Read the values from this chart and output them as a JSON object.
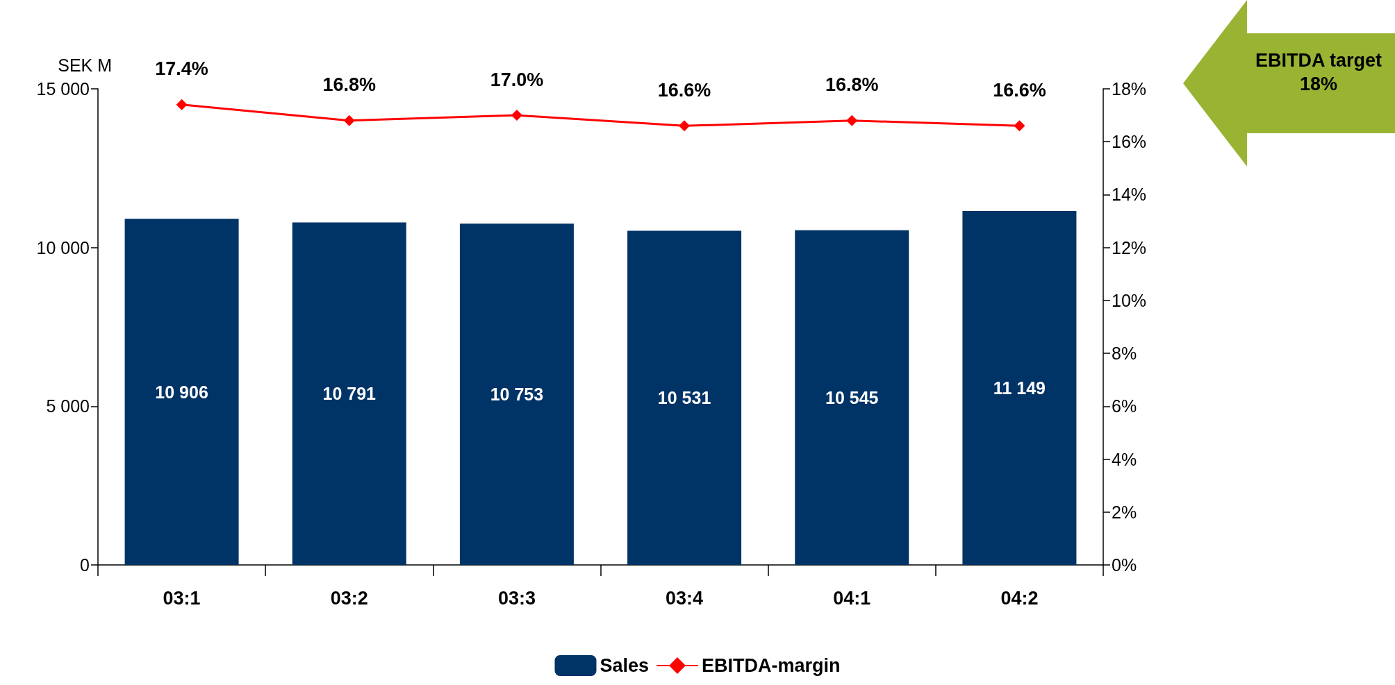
{
  "chart_data": {
    "type": "bar",
    "ylabel": "SEK M",
    "categories": [
      "03:1",
      "03:2",
      "03:3",
      "03:4",
      "04:1",
      "04:2"
    ],
    "series": [
      {
        "name": "Sales",
        "color": "#003366",
        "values": [
          10906,
          10791,
          10753,
          10531,
          10545,
          11149
        ],
        "value_labels": [
          "10 906",
          "10 791",
          "10 753",
          "10 531",
          "10 545",
          "11 149"
        ]
      },
      {
        "name": "EBITDA-margin",
        "type": "line",
        "axis": "y2",
        "color": "#ff0000",
        "marker": "diamond",
        "line_style": "solid",
        "values": [
          17.4,
          16.8,
          17.0,
          16.6,
          16.8,
          16.6
        ],
        "value_labels": [
          "17.4%",
          "16.8%",
          "17.0%",
          "16.6%",
          "16.8%",
          "16.6%"
        ]
      }
    ],
    "ylim": [
      0,
      15000
    ],
    "yticks": [
      {
        "value": 0,
        "label": "0"
      },
      {
        "value": 5000,
        "label": "5 000"
      },
      {
        "value": 10000,
        "label": "10 000"
      },
      {
        "value": 15000,
        "label": "15 000"
      }
    ],
    "y2lim": [
      0,
      18
    ],
    "y2ticks": [
      {
        "value": 0,
        "label": "0%"
      },
      {
        "value": 2,
        "label": "2%"
      },
      {
        "value": 4,
        "label": "4%"
      },
      {
        "value": 6,
        "label": "6%"
      },
      {
        "value": 8,
        "label": "8%"
      },
      {
        "value": 10,
        "label": "10%"
      },
      {
        "value": 12,
        "label": "12%"
      },
      {
        "value": 14,
        "label": "14%"
      },
      {
        "value": 16,
        "label": "16%"
      },
      {
        "value": 18,
        "label": "18%"
      }
    ],
    "grid": false,
    "legend": "bottom",
    "annotations": [
      "EBITDA target 18%"
    ]
  }
}
